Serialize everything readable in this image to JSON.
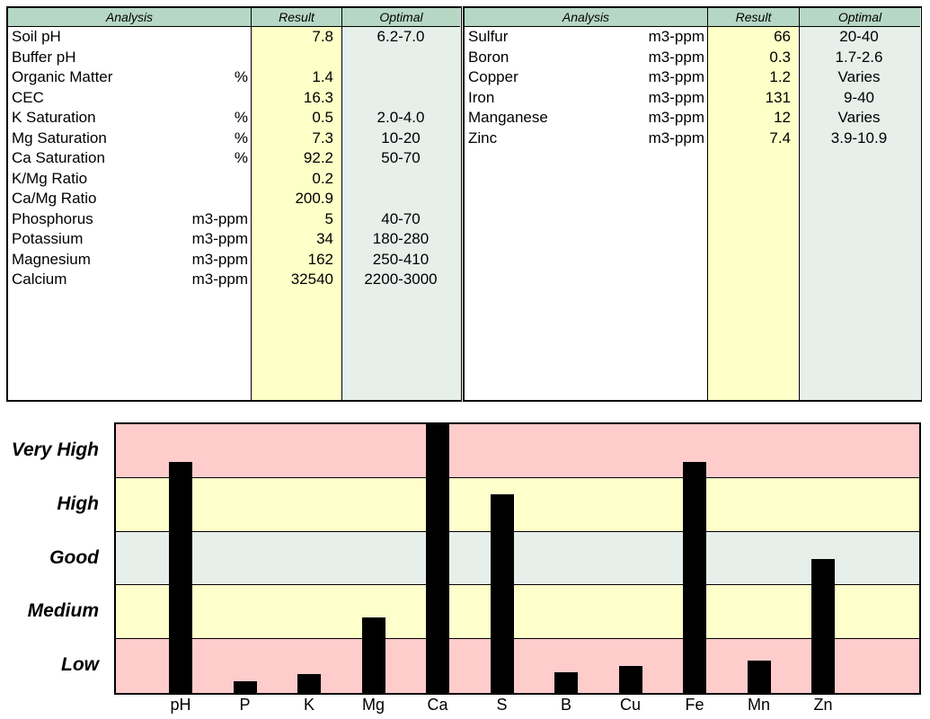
{
  "colors": {
    "header_bg": "#b7d7c5",
    "result_bg": "#ffffc8",
    "optimal_bg": "#e6efea",
    "band_high": "#ffcccc",
    "band_mid": "#ffffcc",
    "band_good": "#e6efea"
  },
  "left_table": {
    "headers": {
      "analysis": "Analysis",
      "result": "Result",
      "optimal": "Optimal"
    },
    "rows": [
      {
        "name": "Soil pH",
        "unit": "",
        "result": "7.8",
        "optimal": "6.2-7.0"
      },
      {
        "name": "Buffer pH",
        "unit": "",
        "result": "",
        "optimal": ""
      },
      {
        "name": "Organic Matter",
        "unit": "%",
        "result": "1.4",
        "optimal": ""
      },
      {
        "name": "CEC",
        "unit": "",
        "result": "16.3",
        "optimal": ""
      },
      {
        "name": "K Saturation",
        "unit": "%",
        "result": "0.5",
        "optimal": "2.0-4.0"
      },
      {
        "name": "Mg Saturation",
        "unit": "%",
        "result": "7.3",
        "optimal": "10-20"
      },
      {
        "name": "Ca Saturation",
        "unit": "%",
        "result": "92.2",
        "optimal": "50-70"
      },
      {
        "name": "K/Mg Ratio",
        "unit": "",
        "result": "0.2",
        "optimal": ""
      },
      {
        "name": "Ca/Mg Ratio",
        "unit": "",
        "result": "200.9",
        "optimal": ""
      },
      {
        "name": "Phosphorus",
        "unit": "m3-ppm",
        "result": "5",
        "optimal": "40-70"
      },
      {
        "name": "Potassium",
        "unit": "m3-ppm",
        "result": "34",
        "optimal": "180-280"
      },
      {
        "name": "Magnesium",
        "unit": "m3-ppm",
        "result": "162",
        "optimal": "250-410"
      },
      {
        "name": "Calcium",
        "unit": "m3-ppm",
        "result": "32540",
        "optimal": "2200-3000"
      }
    ]
  },
  "right_table": {
    "headers": {
      "analysis": "Analysis",
      "result": "Result",
      "optimal": "Optimal"
    },
    "rows": [
      {
        "name": "Sulfur",
        "unit": "m3-ppm",
        "result": "66",
        "optimal": "20-40"
      },
      {
        "name": "Boron",
        "unit": "m3-ppm",
        "result": "0.3",
        "optimal": "1.7-2.6"
      },
      {
        "name": "Copper",
        "unit": "m3-ppm",
        "result": "1.2",
        "optimal": "Varies"
      },
      {
        "name": "Iron",
        "unit": "m3-ppm",
        "result": "131",
        "optimal": "9-40"
      },
      {
        "name": "Manganese",
        "unit": "m3-ppm",
        "result": "12",
        "optimal": "Varies"
      },
      {
        "name": "Zinc",
        "unit": "m3-ppm",
        "result": "7.4",
        "optimal": "3.9-10.9"
      }
    ]
  },
  "chart_data": {
    "type": "bar",
    "categories": [
      "pH",
      "P",
      "K",
      "Mg",
      "Ca",
      "S",
      "B",
      "Cu",
      "Fe",
      "Mn",
      "Zn"
    ],
    "bands": [
      "Very High",
      "High",
      "Good",
      "Medium",
      "Low"
    ],
    "band_range": [
      0,
      5
    ],
    "values": [
      4.3,
      0.22,
      0.35,
      1.4,
      5.0,
      3.7,
      0.38,
      0.5,
      4.3,
      0.6,
      2.5
    ],
    "title": "",
    "xlabel": "",
    "ylabel": "",
    "grid": true,
    "legend": "none"
  }
}
